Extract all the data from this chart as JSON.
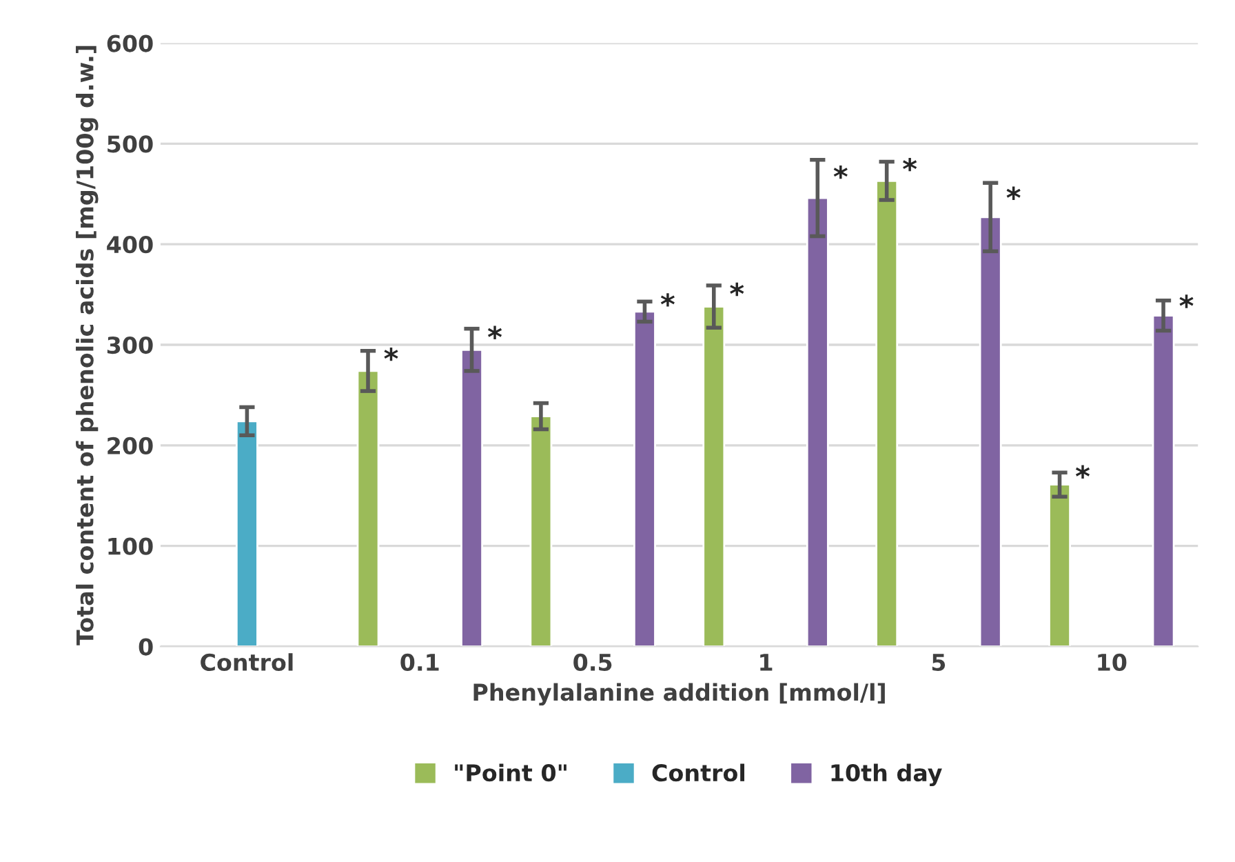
{
  "chart_data": {
    "type": "bar",
    "xlabel": "Phenylalanine addition [mmol/l]",
    "ylabel": "Total content of phenolic acids [mg/100g d.w.]",
    "categories": [
      "Control",
      "0.1",
      "0.5",
      "1",
      "5",
      "10"
    ],
    "series": [
      {
        "name": "\"Point 0\"",
        "color": "#9bbb59",
        "values": [
          null,
          274,
          229,
          338,
          463,
          161
        ],
        "errors": [
          null,
          20,
          13,
          21,
          19,
          12
        ],
        "value_labels": [
          null,
          "*",
          null,
          "*",
          "*",
          "*"
        ]
      },
      {
        "name": "Control",
        "color": "#4bacc6",
        "values": [
          224,
          null,
          null,
          null,
          null,
          null
        ],
        "errors": [
          14,
          null,
          null,
          null,
          null,
          null
        ]
      },
      {
        "name": "10th day",
        "color": "#8064a2",
        "values": [
          null,
          295,
          333,
          446,
          427,
          329
        ],
        "errors": [
          null,
          21,
          10,
          38,
          34,
          15
        ],
        "value_labels": [
          null,
          "*",
          "*",
          "*",
          "*",
          "*"
        ]
      }
    ],
    "ylim": [
      0,
      600
    ],
    "yticks": [
      0,
      100,
      200,
      300,
      400,
      500,
      600
    ],
    "grid": "y",
    "legend": "bottom"
  }
}
